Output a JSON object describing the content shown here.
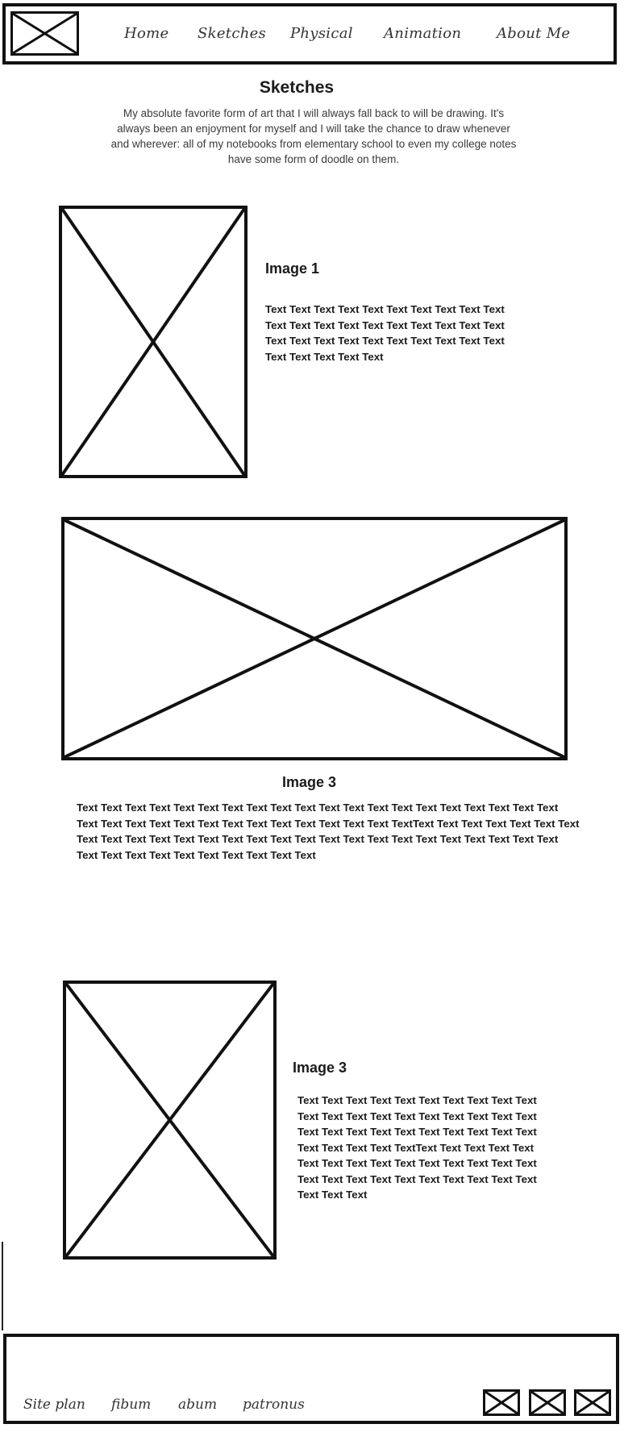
{
  "nav": {
    "items": [
      {
        "label": "Home"
      },
      {
        "label": "Sketches"
      },
      {
        "label": "Physical"
      },
      {
        "label": "Animation"
      },
      {
        "label": "About Me"
      }
    ]
  },
  "page": {
    "title": "Sketches",
    "intro": "My absolute favorite form of art that I will always fall back to will be drawing. It's always been an enjoyment for myself and I will take the chance to draw whenever and wherever: all of my notebooks from elementary school to even my college notes have some form of doodle on them."
  },
  "sections": [
    {
      "heading": "Image 1",
      "body": "Text Text Text Text Text Text Text Text Text Text Text Text Text Text Text Text Text Text Text Text Text Text Text Text Text Text Text Text Text Text Text Text Text Text Text"
    },
    {
      "heading": "Image 3",
      "body": "Text Text Text Text Text Text Text Text Text Text Text Text Text Text Text Text Text Text Text Text Text Text Text Text Text Text Text Text Text Text Text Text Text TextText Text Text Text Text Text Text Text Text Text Text Text Text Text Text Text Text Text Text Text Text Text Text Text Text Text Text Text Text Text Text Text Text Text Text Text Text"
    },
    {
      "heading": "Image 3",
      "body": "Text Text Text Text Text Text Text Text Text Text Text Text Text Text Text Text Text Text Text Text Text Text Text Text Text Text Text Text Text Text Text Text Text Text TextText Text Text Text Text Text Text Text Text Text Text Text Text Text Text Text Text Text Text Text Text Text Text Text Text Text Text Text"
    }
  ],
  "footer": {
    "links": [
      {
        "label": "Site plan"
      },
      {
        "label": "fibum"
      },
      {
        "label": "abum"
      },
      {
        "label": "patronus"
      }
    ]
  }
}
